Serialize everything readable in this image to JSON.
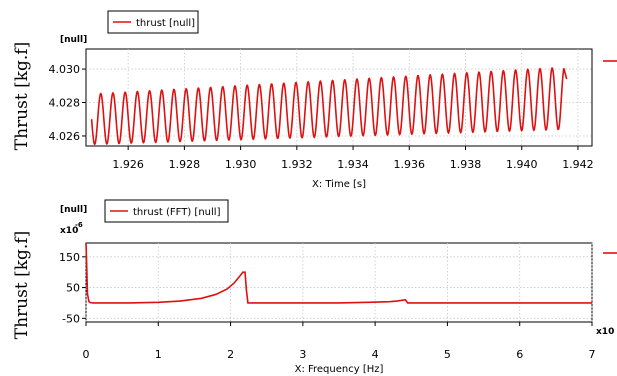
{
  "chart_data": [
    {
      "type": "line",
      "xlabel": "X: Time [s]",
      "ylabel": "Thrust [kg.f]",
      "y_unit": "[null]",
      "xlim": [
        1.9245,
        1.9425
      ],
      "ylim": [
        4.0254,
        4.0312
      ],
      "x_ticks": [
        "1.926",
        "1.928",
        "1.930",
        "1.932",
        "1.934",
        "1.936",
        "1.938",
        "1.940",
        "1.942"
      ],
      "y_ticks": [
        "4.026",
        "4.028",
        "4.030"
      ],
      "grid": true,
      "legend": "top-left",
      "series": [
        {
          "name": "thrust [null]",
          "color": "#dd1111",
          "x_start": 1.9247,
          "x_end": 1.9415,
          "period": 0.000434,
          "min_start": 4.0255,
          "min_end": 4.0264,
          "max_start": 4.0285,
          "max_end": 4.0301,
          "final_value": 4.0294
        }
      ]
    },
    {
      "type": "line",
      "xlabel": "X: Frequency [Hz]",
      "ylabel": "Thrust [kg.f]",
      "y_unit": "[null]",
      "y_multiplier": "x10",
      "y_exponent": "-6",
      "x_multiplier": "x10",
      "xlim": [
        0,
        7
      ],
      "ylim": [
        -62,
        195
      ],
      "x_ticks": [
        "0",
        "1",
        "2",
        "3",
        "4",
        "5",
        "6",
        "7"
      ],
      "y_ticks": [
        "-50",
        "50",
        "150"
      ],
      "grid": true,
      "legend": "top-left",
      "series": [
        {
          "name": "thrust (FFT) [null]",
          "color": "#dd1111",
          "x": [
            0,
            0.01,
            0.02,
            0.04,
            0.06,
            0.1,
            0.3,
            0.6,
            1.0,
            1.3,
            1.6,
            1.8,
            1.95,
            2.05,
            2.12,
            2.17,
            2.2,
            2.22,
            2.24,
            2.26,
            2.3,
            2.5,
            3.0,
            3.5,
            3.9,
            4.2,
            4.3,
            4.38,
            4.42,
            4.45,
            4.5,
            5.0,
            5.5,
            6.0,
            6.5,
            7.0
          ],
          "y": [
            195,
            120,
            30,
            5,
            1,
            0,
            0,
            0,
            2,
            6,
            15,
            28,
            45,
            65,
            85,
            100,
            100,
            40,
            0,
            0,
            0,
            0,
            0,
            0,
            2,
            4,
            6,
            9,
            10,
            0,
            0,
            0,
            0,
            0,
            0,
            0
          ]
        }
      ]
    }
  ]
}
